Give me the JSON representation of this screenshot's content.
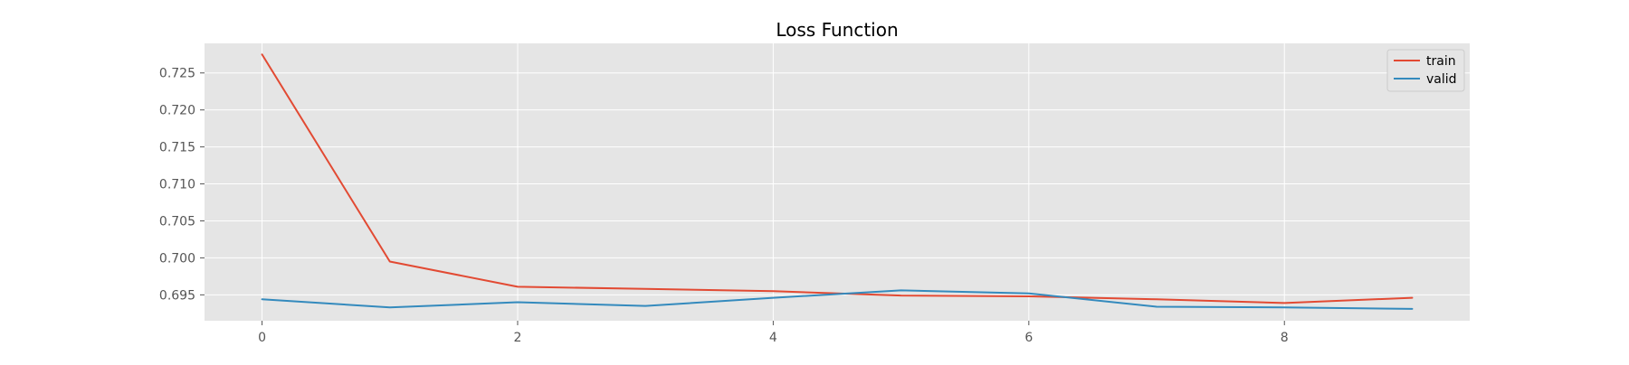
{
  "chart_data": {
    "type": "line",
    "title": "Loss Function",
    "xlabel": "",
    "ylabel": "",
    "x": [
      0,
      1,
      2,
      3,
      4,
      5,
      6,
      7,
      8,
      9
    ],
    "xlim": [
      -0.45,
      9.45
    ],
    "ylim": [
      0.6915,
      0.729
    ],
    "x_ticks": [
      0,
      2,
      4,
      6,
      8
    ],
    "y_ticks": [
      0.695,
      0.7,
      0.705,
      0.71,
      0.715,
      0.72,
      0.725
    ],
    "x_tick_labels": [
      "0",
      "2",
      "4",
      "6",
      "8"
    ],
    "y_tick_labels": [
      "0.695",
      "0.700",
      "0.705",
      "0.710",
      "0.715",
      "0.720",
      "0.725"
    ],
    "grid": true,
    "legend_position": "top-right",
    "series": [
      {
        "name": "train",
        "color": "#e24a33",
        "values": [
          0.7275,
          0.6995,
          0.6961,
          0.6958,
          0.6955,
          0.6949,
          0.6948,
          0.6944,
          0.6939,
          0.6946
        ]
      },
      {
        "name": "valid",
        "color": "#348abd",
        "values": [
          0.6944,
          0.6933,
          0.694,
          0.6935,
          0.6946,
          0.6956,
          0.6952,
          0.6934,
          0.6933,
          0.6931
        ]
      }
    ],
    "colors": {
      "plot_background": "#e5e5e5",
      "grid": "#ffffff",
      "tick_label": "#555555",
      "title": "#000000"
    }
  }
}
